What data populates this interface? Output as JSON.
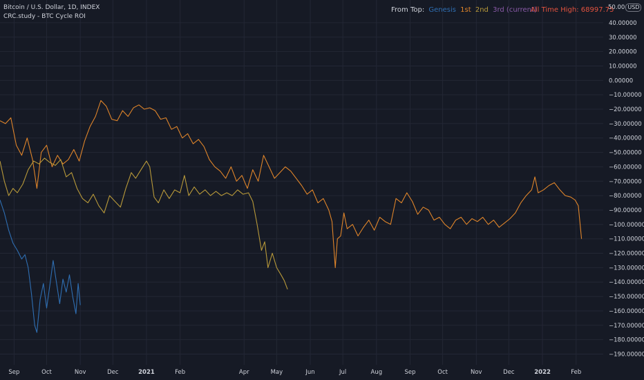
{
  "header": {
    "symbol_line": "Bitcoin / U.S. Dollar, 1D, INDEX",
    "study_line": "CRC.study - BTC Cycle ROI"
  },
  "legend": {
    "prefix": "From Top:",
    "items": [
      {
        "label": "Genesis",
        "color": "#2f6fb3"
      },
      {
        "label": "1st",
        "color": "#e0852a"
      },
      {
        "label": "2nd",
        "color": "#b99a3a"
      },
      {
        "label": "3rd (current)",
        "color": "#8a5aa8"
      }
    ]
  },
  "ath": {
    "label": "All Time High:",
    "value": "68997.75",
    "color": "#e5533f"
  },
  "y_axis": {
    "top_tick": "50.00",
    "unit_badge": "USD",
    "ticks": [
      "40.00000",
      "30.00000",
      "20.00000",
      "10.00000",
      "0.00000",
      "−10.00000",
      "−20.00000",
      "−30.00000",
      "−40.00000",
      "−50.00000",
      "−60.00000",
      "−70.00000",
      "−80.00000",
      "−90.00000",
      "−100.00000",
      "−110.00000",
      "−120.00000",
      "−130.00000",
      "−140.00000",
      "−150.00000",
      "−160.00000",
      "−170.00000",
      "−180.00000",
      "−190.00000"
    ]
  },
  "x_axis": {
    "ticks": [
      {
        "label": "Sep",
        "bold": false
      },
      {
        "label": "Oct",
        "bold": false
      },
      {
        "label": "Nov",
        "bold": false
      },
      {
        "label": "Dec",
        "bold": false
      },
      {
        "label": "2021",
        "bold": true
      },
      {
        "label": "Feb",
        "bold": false
      },
      {
        "label": "Apr",
        "bold": false
      },
      {
        "label": "May",
        "bold": false
      },
      {
        "label": "Jun",
        "bold": false
      },
      {
        "label": "Jul",
        "bold": false
      },
      {
        "label": "Aug",
        "bold": false
      },
      {
        "label": "Sep",
        "bold": false
      },
      {
        "label": "Oct",
        "bold": false
      },
      {
        "label": "Nov",
        "bold": false
      },
      {
        "label": "Dec",
        "bold": false
      },
      {
        "label": "2022",
        "bold": true
      },
      {
        "label": "Feb",
        "bold": false
      }
    ]
  },
  "chart_data": {
    "type": "line",
    "title": "CRC.study - BTC Cycle ROI",
    "xlabel": "",
    "ylabel": "",
    "x_range": [
      "2020-08-19",
      "2022-02-26"
    ],
    "ylim": [
      -196,
      51
    ],
    "grid": true,
    "series": [
      {
        "name": "Genesis",
        "color": "#2f6fb3",
        "points": [
          [
            "2020-08-19",
            -83
          ],
          [
            "2020-08-23",
            -92
          ],
          [
            "2020-08-27",
            -104
          ],
          [
            "2020-08-31",
            -113
          ],
          [
            "2020-09-04",
            -118
          ],
          [
            "2020-09-08",
            -124
          ],
          [
            "2020-09-11",
            -121
          ],
          [
            "2020-09-14",
            -130
          ],
          [
            "2020-09-17",
            -148
          ],
          [
            "2020-09-20",
            -170
          ],
          [
            "2020-09-22",
            -175
          ],
          [
            "2020-09-25",
            -152
          ],
          [
            "2020-09-28",
            -141
          ],
          [
            "2020-10-01",
            -158
          ],
          [
            "2020-10-04",
            -142
          ],
          [
            "2020-10-07",
            -125
          ],
          [
            "2020-10-10",
            -140
          ],
          [
            "2020-10-13",
            -155
          ],
          [
            "2020-10-16",
            -138
          ],
          [
            "2020-10-19",
            -147
          ],
          [
            "2020-10-22",
            -135
          ],
          [
            "2020-10-25",
            -150
          ],
          [
            "2020-10-28",
            -162
          ],
          [
            "2020-10-30",
            -141
          ],
          [
            "2020-11-01",
            -156
          ]
        ]
      },
      {
        "name": "1st",
        "color": "#e0852a",
        "points": [
          [
            "2020-08-19",
            -28
          ],
          [
            "2020-08-24",
            -30
          ],
          [
            "2020-08-29",
            -26
          ],
          [
            "2020-09-03",
            -45
          ],
          [
            "2020-09-08",
            -52
          ],
          [
            "2020-09-13",
            -40
          ],
          [
            "2020-09-18",
            -55
          ],
          [
            "2020-09-22",
            -75
          ],
          [
            "2020-09-26",
            -50
          ],
          [
            "2020-10-01",
            -45
          ],
          [
            "2020-10-06",
            -60
          ],
          [
            "2020-10-11",
            -52
          ],
          [
            "2020-10-16",
            -58
          ],
          [
            "2020-10-21",
            -55
          ],
          [
            "2020-10-26",
            -48
          ],
          [
            "2020-10-31",
            -56
          ],
          [
            "2020-11-05",
            -42
          ],
          [
            "2020-11-10",
            -32
          ],
          [
            "2020-11-15",
            -25
          ],
          [
            "2020-11-20",
            -14
          ],
          [
            "2020-11-25",
            -18
          ],
          [
            "2020-11-30",
            -27
          ],
          [
            "2020-12-05",
            -28
          ],
          [
            "2020-12-10",
            -21
          ],
          [
            "2020-12-15",
            -25
          ],
          [
            "2020-12-20",
            -19
          ],
          [
            "2020-12-25",
            -17
          ],
          [
            "2020-12-30",
            -20
          ],
          [
            "2021-01-04",
            -19
          ],
          [
            "2021-01-09",
            -21
          ],
          [
            "2021-01-14",
            -27
          ],
          [
            "2021-01-19",
            -26
          ],
          [
            "2021-01-24",
            -34
          ],
          [
            "2021-01-29",
            -32
          ],
          [
            "2021-02-03",
            -40
          ],
          [
            "2021-02-08",
            -37
          ],
          [
            "2021-02-13",
            -44
          ],
          [
            "2021-02-18",
            -41
          ],
          [
            "2021-02-23",
            -46
          ],
          [
            "2021-02-28",
            -55
          ],
          [
            "2021-03-05",
            -60
          ],
          [
            "2021-03-10",
            -63
          ],
          [
            "2021-03-15",
            -68
          ],
          [
            "2021-03-20",
            -60
          ],
          [
            "2021-03-25",
            -70
          ],
          [
            "2021-03-30",
            -66
          ],
          [
            "2021-04-04",
            -75
          ],
          [
            "2021-04-09",
            -62
          ],
          [
            "2021-04-14",
            -70
          ],
          [
            "2021-04-19",
            -52
          ],
          [
            "2021-04-24",
            -60
          ],
          [
            "2021-04-29",
            -68
          ],
          [
            "2021-05-04",
            -64
          ],
          [
            "2021-05-09",
            -60
          ],
          [
            "2021-05-14",
            -63
          ],
          [
            "2021-05-19",
            -68
          ],
          [
            "2021-05-24",
            -73
          ],
          [
            "2021-05-29",
            -79
          ],
          [
            "2021-06-03",
            -76
          ],
          [
            "2021-06-08",
            -85
          ],
          [
            "2021-06-13",
            -82
          ],
          [
            "2021-06-18",
            -90
          ],
          [
            "2021-06-21",
            -98
          ],
          [
            "2021-06-24",
            -130
          ],
          [
            "2021-06-26",
            -110
          ],
          [
            "2021-06-29",
            -108
          ],
          [
            "2021-07-02",
            -92
          ],
          [
            "2021-07-05",
            -103
          ],
          [
            "2021-07-10",
            -100
          ],
          [
            "2021-07-15",
            -108
          ],
          [
            "2021-07-20",
            -102
          ],
          [
            "2021-07-25",
            -97
          ],
          [
            "2021-07-30",
            -104
          ],
          [
            "2021-08-04",
            -95
          ],
          [
            "2021-08-09",
            -98
          ],
          [
            "2021-08-14",
            -100
          ],
          [
            "2021-08-19",
            -82
          ],
          [
            "2021-08-24",
            -85
          ],
          [
            "2021-08-29",
            -78
          ],
          [
            "2021-09-03",
            -84
          ],
          [
            "2021-09-08",
            -93
          ],
          [
            "2021-09-13",
            -88
          ],
          [
            "2021-09-18",
            -90
          ],
          [
            "2021-09-23",
            -97
          ],
          [
            "2021-09-28",
            -95
          ],
          [
            "2021-10-03",
            -100
          ],
          [
            "2021-10-08",
            -103
          ],
          [
            "2021-10-13",
            -97
          ],
          [
            "2021-10-18",
            -95
          ],
          [
            "2021-10-23",
            -100
          ],
          [
            "2021-10-28",
            -96
          ],
          [
            "2021-11-02",
            -98
          ],
          [
            "2021-11-07",
            -95
          ],
          [
            "2021-11-12",
            -100
          ],
          [
            "2021-11-17",
            -97
          ],
          [
            "2021-11-22",
            -102
          ],
          [
            "2021-11-27",
            -99
          ],
          [
            "2021-12-02",
            -96
          ],
          [
            "2021-12-07",
            -92
          ],
          [
            "2021-12-12",
            -85
          ],
          [
            "2021-12-17",
            -80
          ],
          [
            "2021-12-22",
            -76
          ],
          [
            "2021-12-25",
            -67
          ],
          [
            "2021-12-28",
            -78
          ],
          [
            "2022-01-02",
            -76
          ],
          [
            "2022-01-07",
            -73
          ],
          [
            "2022-01-12",
            -71
          ],
          [
            "2022-01-17",
            -76
          ],
          [
            "2022-01-22",
            -80
          ],
          [
            "2022-01-27",
            -81
          ],
          [
            "2022-01-31",
            -83
          ],
          [
            "2022-02-03",
            -87
          ],
          [
            "2022-02-06",
            -110
          ]
        ]
      },
      {
        "name": "2nd",
        "color": "#b99a3a",
        "points": [
          [
            "2020-08-19",
            -56
          ],
          [
            "2020-08-23",
            -70
          ],
          [
            "2020-08-27",
            -80
          ],
          [
            "2020-08-31",
            -75
          ],
          [
            "2020-09-04",
            -78
          ],
          [
            "2020-09-09",
            -72
          ],
          [
            "2020-09-14",
            -62
          ],
          [
            "2020-09-19",
            -56
          ],
          [
            "2020-09-24",
            -58
          ],
          [
            "2020-09-29",
            -54
          ],
          [
            "2020-10-04",
            -57
          ],
          [
            "2020-10-09",
            -59
          ],
          [
            "2020-10-14",
            -55
          ],
          [
            "2020-10-19",
            -67
          ],
          [
            "2020-10-24",
            -64
          ],
          [
            "2020-10-29",
            -75
          ],
          [
            "2020-11-03",
            -82
          ],
          [
            "2020-11-08",
            -85
          ],
          [
            "2020-11-13",
            -79
          ],
          [
            "2020-11-18",
            -87
          ],
          [
            "2020-11-23",
            -92
          ],
          [
            "2020-11-28",
            -80
          ],
          [
            "2020-12-03",
            -84
          ],
          [
            "2020-12-08",
            -88
          ],
          [
            "2020-12-13",
            -75
          ],
          [
            "2020-12-18",
            -64
          ],
          [
            "2020-12-22",
            -68
          ],
          [
            "2020-12-27",
            -62
          ],
          [
            "2021-01-01",
            -56
          ],
          [
            "2021-01-04",
            -60
          ],
          [
            "2021-01-08",
            -81
          ],
          [
            "2021-01-12",
            -85
          ],
          [
            "2021-01-17",
            -76
          ],
          [
            "2021-01-22",
            -82
          ],
          [
            "2021-01-27",
            -76
          ],
          [
            "2021-02-01",
            -78
          ],
          [
            "2021-02-05",
            -66
          ],
          [
            "2021-02-09",
            -80
          ],
          [
            "2021-02-14",
            -74
          ],
          [
            "2021-02-19",
            -79
          ],
          [
            "2021-02-24",
            -76
          ],
          [
            "2021-03-01",
            -80
          ],
          [
            "2021-03-06",
            -77
          ],
          [
            "2021-03-11",
            -80
          ],
          [
            "2021-03-16",
            -78
          ],
          [
            "2021-03-21",
            -80
          ],
          [
            "2021-03-26",
            -76
          ],
          [
            "2021-03-31",
            -79
          ],
          [
            "2021-04-05",
            -78
          ],
          [
            "2021-04-09",
            -84
          ],
          [
            "2021-04-13",
            -100
          ],
          [
            "2021-04-17",
            -118
          ],
          [
            "2021-04-20",
            -112
          ],
          [
            "2021-04-23",
            -130
          ],
          [
            "2021-04-27",
            -120
          ],
          [
            "2021-05-01",
            -130
          ],
          [
            "2021-05-05",
            -135
          ],
          [
            "2021-05-08",
            -139
          ],
          [
            "2021-05-11",
            -145
          ]
        ]
      }
    ]
  }
}
